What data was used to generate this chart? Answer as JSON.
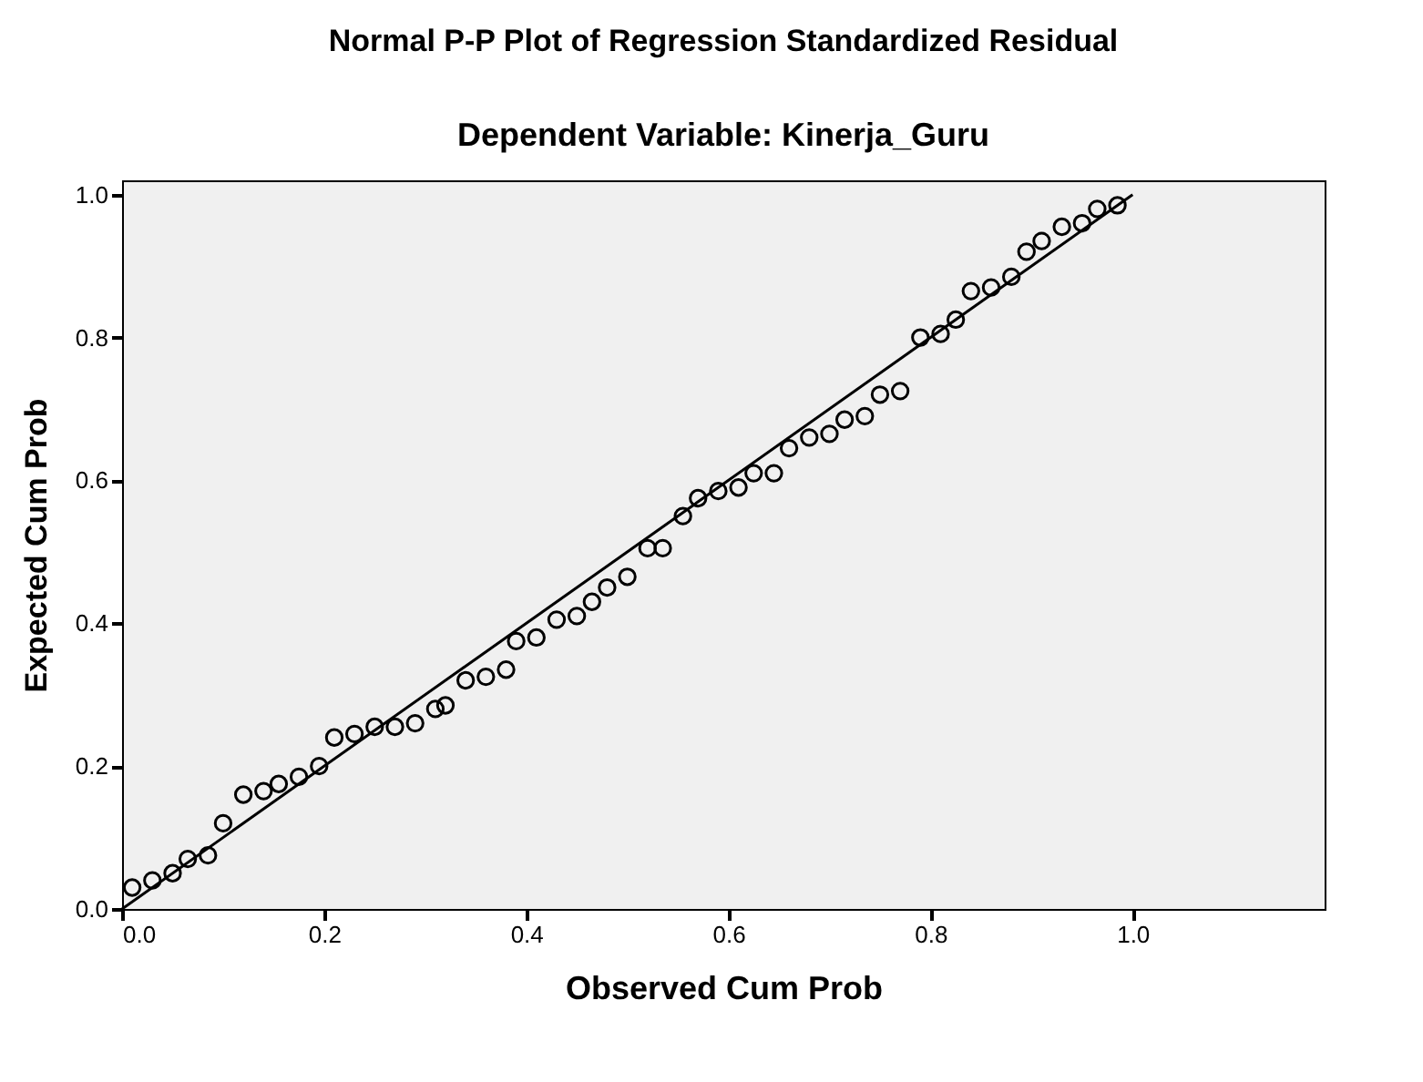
{
  "chart_data": {
    "type": "scatter",
    "title": "Normal P-P Plot of Regression Standardized Residual",
    "subtitle": "Dependent Variable: Kinerja_Guru",
    "xlabel": "Observed Cum Prob",
    "ylabel": "Expected Cum Prob",
    "xlim": [
      0,
      1.19
    ],
    "ylim": [
      0,
      1.02
    ],
    "xticks": [
      {
        "value": 0,
        "label": "0.0"
      },
      {
        "value": 0.2,
        "label": "0.2"
      },
      {
        "value": 0.4,
        "label": "0.4"
      },
      {
        "value": 0.6,
        "label": "0.6"
      },
      {
        "value": 0.8,
        "label": "0.8"
      },
      {
        "value": 1,
        "label": "1.0"
      }
    ],
    "yticks": [
      {
        "value": 0,
        "label": "0.0"
      },
      {
        "value": 0.2,
        "label": "0.2"
      },
      {
        "value": 0.4,
        "label": "0.4"
      },
      {
        "value": 0.6,
        "label": "0.6"
      },
      {
        "value": 0.8,
        "label": "0.8"
      },
      {
        "value": 1,
        "label": "1.0"
      }
    ],
    "grid": false,
    "series": [
      {
        "marker": "circle",
        "color": "#000000",
        "x": [
          0.01,
          0.03,
          0.05,
          0.065,
          0.085,
          0.1,
          0.12,
          0.14,
          0.155,
          0.175,
          0.195,
          0.21,
          0.23,
          0.25,
          0.27,
          0.29,
          0.31,
          0.32,
          0.34,
          0.36,
          0.38,
          0.39,
          0.41,
          0.43,
          0.45,
          0.465,
          0.48,
          0.5,
          0.52,
          0.535,
          0.555,
          0.57,
          0.59,
          0.61,
          0.625,
          0.645,
          0.66,
          0.68,
          0.7,
          0.715,
          0.735,
          0.75,
          0.77,
          0.79,
          0.81,
          0.825,
          0.84,
          0.86,
          0.88,
          0.895,
          0.91,
          0.93,
          0.95,
          0.965,
          0.985
        ],
        "values": [
          0.03,
          0.04,
          0.05,
          0.07,
          0.075,
          0.12,
          0.16,
          0.165,
          0.175,
          0.185,
          0.2,
          0.24,
          0.245,
          0.255,
          0.255,
          0.26,
          0.28,
          0.285,
          0.32,
          0.325,
          0.335,
          0.375,
          0.38,
          0.405,
          0.41,
          0.43,
          0.45,
          0.465,
          0.505,
          0.505,
          0.55,
          0.575,
          0.585,
          0.59,
          0.61,
          0.61,
          0.645,
          0.66,
          0.665,
          0.685,
          0.69,
          0.72,
          0.725,
          0.8,
          0.805,
          0.825,
          0.865,
          0.87,
          0.885,
          0.92,
          0.935,
          0.955,
          0.96,
          0.98,
          0.985
        ]
      },
      {
        "type": "line",
        "color": "#000000",
        "x": [
          0,
          1
        ],
        "values": [
          0,
          1
        ]
      }
    ]
  }
}
